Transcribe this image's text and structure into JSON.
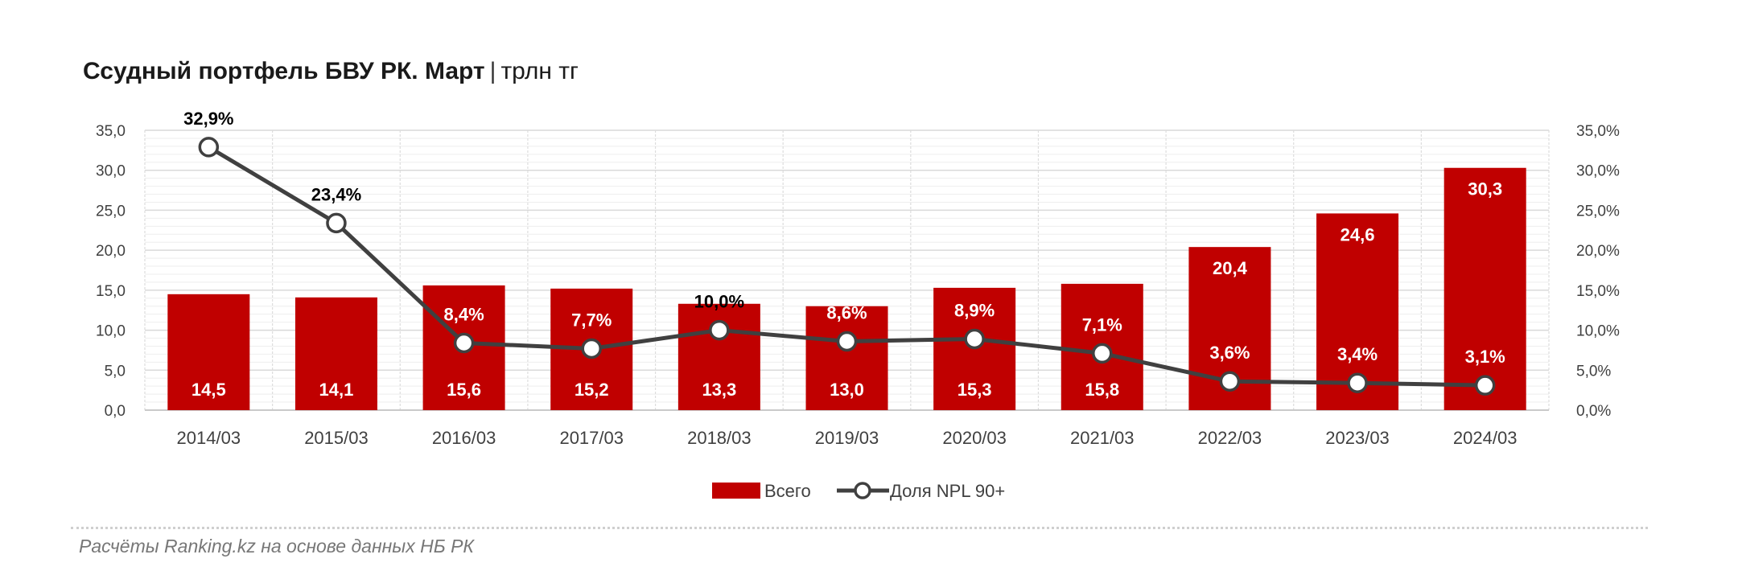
{
  "title": {
    "main": "Ссудный портфель БВУ РК. Март",
    "separator": "|",
    "unit": "трлн тг"
  },
  "footnote": "Расчёты Ranking.kz на основе данных НБ РК",
  "colors": {
    "bar": "#c00000",
    "line": "#404040",
    "marker_fill": "#ffffff",
    "grid": "#d9d9d9"
  },
  "chart_data": {
    "type": "bar",
    "categories": [
      "2014/03",
      "2015/03",
      "2016/03",
      "2017/03",
      "2018/03",
      "2019/03",
      "2020/03",
      "2021/03",
      "2022/03",
      "2023/03",
      "2024/03"
    ],
    "series": [
      {
        "name": "Всего",
        "type": "bar",
        "axis": "left",
        "values": [
          14.5,
          14.1,
          15.6,
          15.2,
          13.3,
          13.0,
          15.3,
          15.8,
          20.4,
          24.6,
          30.3
        ],
        "labels": [
          "14,5",
          "14,1",
          "15,6",
          "15,2",
          "13,3",
          "13,0",
          "15,3",
          "15,8",
          "20,4",
          "24,6",
          "30,3"
        ]
      },
      {
        "name": "Доля NPL 90+",
        "type": "line",
        "axis": "right",
        "values": [
          32.9,
          23.4,
          8.4,
          7.7,
          10.0,
          8.6,
          8.9,
          7.1,
          3.6,
          3.4,
          3.1
        ],
        "labels": [
          "32,9%",
          "23,4%",
          "8,4%",
          "7,7%",
          "10,0%",
          "8,6%",
          "8,9%",
          "7,1%",
          "3,6%",
          "3,4%",
          "3,1%"
        ]
      }
    ],
    "y_left": {
      "min": 0,
      "max": 35,
      "step": 5,
      "ticks": [
        "0,0",
        "5,0",
        "10,0",
        "15,0",
        "20,0",
        "25,0",
        "30,0",
        "35,0"
      ]
    },
    "y_right": {
      "min": 0,
      "max": 35,
      "step": 5,
      "ticks": [
        "0,0%",
        "5,0%",
        "10,0%",
        "15,0%",
        "20,0%",
        "25,0%",
        "30,0%",
        "35,0%"
      ]
    },
    "grid": true,
    "legend": "bottom-center"
  }
}
